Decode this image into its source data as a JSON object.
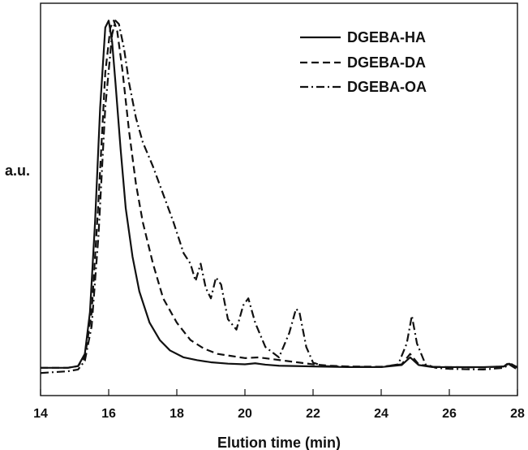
{
  "chart_data": {
    "type": "line",
    "title": "",
    "xlabel": "Elution time (min)",
    "ylabel": "a.u.",
    "xlim": [
      14,
      28
    ],
    "ylim": [
      -0.08,
      1.05
    ],
    "x_ticks": [
      14,
      16,
      18,
      20,
      22,
      24,
      26,
      28
    ],
    "x_tick_labels": [
      "14",
      "16",
      "18",
      "20",
      "22",
      "24",
      "26",
      "28"
    ],
    "y_ticks_shown": false,
    "grid": false,
    "legend": {
      "position": "top-right"
    },
    "series": [
      {
        "name": "DGEBA-HA",
        "style": "solid",
        "color": "#111111",
        "x": [
          14.0,
          14.8,
          15.1,
          15.3,
          15.45,
          15.6,
          15.75,
          15.9,
          16.0,
          16.1,
          16.2,
          16.35,
          16.5,
          16.7,
          16.9,
          17.2,
          17.5,
          17.8,
          18.2,
          18.6,
          19.0,
          19.5,
          20.0,
          20.3,
          20.6,
          21.0,
          22.0,
          23.0,
          24.0,
          24.6,
          24.85,
          25.1,
          25.5,
          26.0,
          27.0,
          27.6,
          27.75,
          28.0
        ],
        "y": [
          0.0,
          0.0,
          0.005,
          0.04,
          0.16,
          0.42,
          0.75,
          0.98,
          1.0,
          0.94,
          0.82,
          0.63,
          0.46,
          0.32,
          0.22,
          0.13,
          0.08,
          0.05,
          0.03,
          0.022,
          0.016,
          0.012,
          0.01,
          0.013,
          0.009,
          0.006,
          0.004,
          0.002,
          0.002,
          0.008,
          0.03,
          0.008,
          0.002,
          0.002,
          0.002,
          0.004,
          0.012,
          0.002
        ]
      },
      {
        "name": "DGEBA-DA",
        "style": "dashed",
        "color": "#111111",
        "x": [
          14.0,
          14.8,
          15.1,
          15.3,
          15.5,
          15.7,
          15.9,
          16.05,
          16.15,
          16.25,
          16.4,
          16.6,
          16.8,
          17.0,
          17.3,
          17.6,
          18.0,
          18.4,
          18.8,
          19.2,
          19.6,
          20.0,
          20.4,
          20.8,
          21.2,
          21.6,
          22.0,
          22.5,
          23.0,
          24.0,
          24.6,
          24.85,
          25.1,
          25.5,
          26.0,
          27.0,
          27.6,
          27.75,
          28.0
        ],
        "y": [
          0.0,
          0.0,
          0.005,
          0.03,
          0.16,
          0.48,
          0.85,
          0.98,
          1.0,
          0.97,
          0.86,
          0.68,
          0.53,
          0.42,
          0.3,
          0.2,
          0.13,
          0.08,
          0.055,
          0.04,
          0.034,
          0.028,
          0.03,
          0.025,
          0.02,
          0.015,
          0.01,
          0.006,
          0.004,
          0.003,
          0.01,
          0.04,
          0.01,
          0.003,
          0.002,
          0.001,
          0.004,
          0.015,
          0.001
        ]
      },
      {
        "name": "DGEBA-OA",
        "style": "dashdot",
        "color": "#111111",
        "x": [
          14.0,
          14.8,
          15.1,
          15.3,
          15.5,
          15.7,
          15.9,
          16.1,
          16.2,
          16.3,
          16.45,
          16.6,
          16.8,
          17.0,
          17.3,
          17.6,
          17.9,
          18.2,
          18.4,
          18.55,
          18.7,
          18.85,
          19.0,
          19.15,
          19.3,
          19.5,
          19.75,
          19.95,
          20.1,
          20.3,
          20.6,
          21.0,
          21.3,
          21.5,
          21.6,
          21.8,
          22.0,
          22.3,
          23.0,
          24.0,
          24.5,
          24.75,
          24.9,
          25.05,
          25.3,
          25.6,
          26.0,
          27.0,
          27.6,
          27.75,
          28.0
        ],
        "y": [
          -0.015,
          -0.01,
          -0.005,
          0.02,
          0.12,
          0.38,
          0.75,
          0.96,
          1.0,
          0.99,
          0.92,
          0.82,
          0.72,
          0.65,
          0.58,
          0.5,
          0.42,
          0.33,
          0.3,
          0.25,
          0.3,
          0.23,
          0.2,
          0.26,
          0.24,
          0.14,
          0.11,
          0.18,
          0.2,
          0.13,
          0.06,
          0.03,
          0.1,
          0.17,
          0.16,
          0.06,
          0.015,
          0.005,
          0.003,
          0.002,
          0.01,
          0.07,
          0.15,
          0.07,
          0.01,
          0.0,
          -0.003,
          -0.005,
          0.0,
          0.01,
          -0.005
        ]
      }
    ]
  }
}
